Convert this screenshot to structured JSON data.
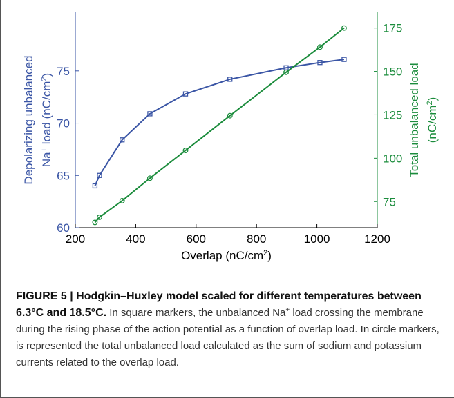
{
  "chart_data": {
    "type": "line",
    "x": [
      265,
      280,
      355,
      447,
      565,
      712,
      898,
      1010,
      1090
    ],
    "xlim": [
      200,
      1200
    ],
    "xticks": [
      200,
      400,
      600,
      800,
      1000,
      1200
    ],
    "ylim": [
      60,
      80.6
    ],
    "yticks": [
      60,
      65,
      70,
      75
    ],
    "y2lim": [
      60,
      184
    ],
    "y2ticks": [
      75,
      100,
      125,
      150,
      175
    ],
    "xlabel": [
      {
        "text": "Overlap (nC/cm"
      },
      {
        "text": "2",
        "sup": true
      },
      {
        "text": ")"
      }
    ],
    "ylabel": [
      [
        {
          "text": "Depolarizing unbalanced"
        }
      ],
      [
        {
          "text": "Na"
        },
        {
          "text": "+",
          "sup": true
        },
        {
          "text": " load (nC/cm"
        },
        {
          "text": "2",
          "sup": true
        },
        {
          "text": ")"
        }
      ]
    ],
    "y2label": [
      [
        {
          "text": "Total unbalanced load"
        }
      ],
      [
        {
          "text": "(nC/cm"
        },
        {
          "text": "2",
          "sup": true
        },
        {
          "text": ")"
        }
      ]
    ],
    "series": [
      {
        "color": "#3a55a5",
        "marker": "square",
        "values": [
          64,
          65,
          68.4,
          70.9,
          72.8,
          74.2,
          75.3,
          75.8,
          76.1
        ]
      },
      {
        "color": "#1b8c3c",
        "marker": "circle",
        "axis": "y2",
        "values": [
          63,
          66,
          75.5,
          88.5,
          104.5,
          124.5,
          149.5,
          164,
          175
        ]
      }
    ]
  },
  "caption": {
    "title": "FIGURE 5 | Hodgkin–Huxley model scaled for different temperatures between 6.3°C and 18.5°C.",
    "body": [
      {
        "text": " In square markers, the unbalanced Na"
      },
      {
        "text": "+",
        "sup": true
      },
      {
        "text": " load crossing the membrane during the rising phase of the action potential as a function of overlap load. In circle markers, is represented the total unbalanced load calculated as the sum of sodium and potassium currents related to the overlap load."
      }
    ]
  }
}
